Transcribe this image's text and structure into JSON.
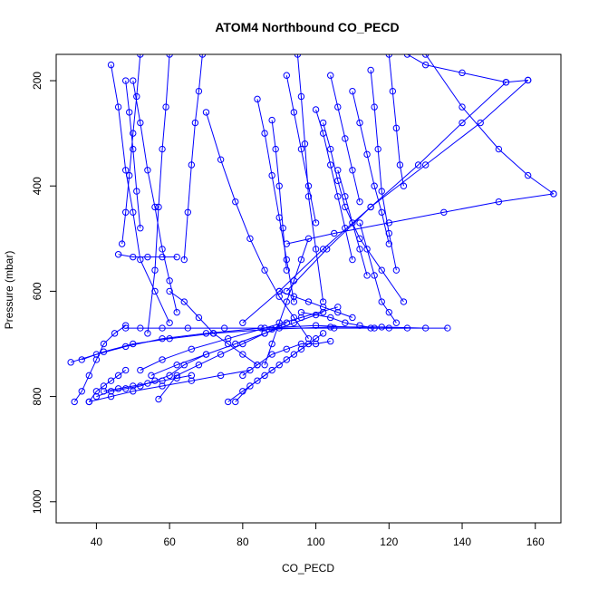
{
  "chart_data": {
    "type": "line",
    "title": "ATOM4 Northbound CO_PECD",
    "xlabel": "CO_PECD",
    "ylabel": "Pressure (mbar)",
    "xlim": [
      29,
      167
    ],
    "ylim": [
      1040,
      150
    ],
    "y_reversed": true,
    "x_ticks": [
      40,
      60,
      80,
      100,
      120,
      140,
      160
    ],
    "y_ticks": [
      200,
      400,
      600,
      800,
      1000
    ],
    "grid": false,
    "legend": "none",
    "marker": "open-circle",
    "color": "#0000ff",
    "series": [
      {
        "x": [
          34,
          36,
          38,
          40,
          42,
          45,
          48
        ],
        "y": [
          810,
          790,
          760,
          730,
          700,
          680,
          665
        ]
      },
      {
        "x": [
          48,
          52,
          58,
          65,
          75,
          90,
          105,
          120,
          136
        ],
        "y": [
          670,
          670,
          670,
          670,
          670,
          670,
          670,
          670,
          670
        ]
      },
      {
        "x": [
          44,
          46,
          48,
          50,
          52,
          56,
          60
        ],
        "y": [
          170,
          250,
          370,
          450,
          540,
          600,
          660
        ]
      },
      {
        "x": [
          50,
          52,
          54,
          56,
          58,
          60,
          62
        ],
        "y": [
          200,
          280,
          370,
          440,
          520,
          580,
          640
        ]
      },
      {
        "x": [
          38,
          40,
          42,
          44,
          46,
          48
        ],
        "y": [
          810,
          790,
          780,
          770,
          760,
          750
        ]
      },
      {
        "x": [
          40,
          44,
          48,
          52,
          56,
          60,
          64,
          70
        ],
        "y": [
          800,
          790,
          785,
          780,
          770,
          760,
          740,
          720
        ]
      },
      {
        "x": [
          33,
          40,
          48,
          58,
          70,
          85,
          100,
          115,
          125
        ],
        "y": [
          735,
          720,
          705,
          690,
          680,
          670,
          665,
          670,
          670
        ]
      },
      {
        "x": [
          36,
          42,
          50,
          60,
          72,
          88,
          104,
          118,
          130
        ],
        "y": [
          730,
          715,
          700,
          690,
          680,
          672,
          668,
          668,
          670
        ]
      },
      {
        "x": [
          60,
          64,
          68,
          72,
          76,
          80,
          84
        ],
        "y": [
          600,
          620,
          650,
          680,
          700,
          720,
          740
        ]
      },
      {
        "x": [
          70,
          74,
          78,
          82,
          86,
          90,
          94,
          98
        ],
        "y": [
          260,
          350,
          430,
          500,
          560,
          610,
          650,
          690
        ]
      },
      {
        "x": [
          84,
          86,
          88,
          90,
          92,
          94
        ],
        "y": [
          235,
          300,
          380,
          460,
          540,
          620
        ]
      },
      {
        "x": [
          95,
          96,
          97,
          98,
          100,
          102
        ],
        "y": [
          150,
          230,
          320,
          420,
          520,
          620
        ]
      },
      {
        "x": [
          100,
          102,
          104,
          106,
          108,
          110
        ],
        "y": [
          255,
          300,
          360,
          420,
          480,
          540
        ]
      },
      {
        "x": [
          102,
          104,
          106,
          108,
          112,
          118,
          124
        ],
        "y": [
          280,
          330,
          390,
          440,
          500,
          560,
          620
        ]
      },
      {
        "x": [
          110,
          112,
          114,
          116,
          118,
          120
        ],
        "y": [
          220,
          280,
          340,
          400,
          450,
          510
        ]
      },
      {
        "x": [
          115,
          116,
          117,
          118,
          120,
          122
        ],
        "y": [
          180,
          250,
          330,
          410,
          490,
          560
        ]
      },
      {
        "x": [
          120,
          121,
          122,
          123,
          124
        ],
        "y": [
          150,
          220,
          290,
          360,
          400
        ]
      },
      {
        "x": [
          125,
          130,
          140,
          152,
          158
        ],
        "y": [
          150,
          170,
          185,
          203,
          199
        ]
      },
      {
        "x": [
          130,
          140,
          150,
          158,
          165
        ],
        "y": [
          150,
          250,
          330,
          380,
          415
        ]
      },
      {
        "x": [
          165,
          150,
          135,
          120,
          105,
          92
        ],
        "y": [
          415,
          430,
          450,
          470,
          490,
          510
        ]
      },
      {
        "x": [
          158,
          145,
          130,
          115,
          102,
          90,
          80
        ],
        "y": [
          199,
          280,
          360,
          440,
          520,
          600,
          660
        ]
      },
      {
        "x": [
          152,
          140,
          128,
          115,
          103,
          92
        ],
        "y": [
          203,
          280,
          360,
          440,
          520,
          600
        ]
      },
      {
        "x": [
          76,
          80,
          84,
          88,
          92,
          96,
          100
        ],
        "y": [
          810,
          790,
          770,
          750,
          730,
          710,
          690
        ]
      },
      {
        "x": [
          78,
          82,
          86,
          90,
          94,
          98,
          102
        ],
        "y": [
          810,
          780,
          760,
          740,
          720,
          700,
          680
        ]
      },
      {
        "x": [
          86,
          88,
          90,
          92,
          94,
          96,
          98
        ],
        "y": [
          740,
          700,
          660,
          620,
          580,
          540,
          500
        ]
      },
      {
        "x": [
          57,
          62,
          68,
          74,
          80,
          86,
          92
        ],
        "y": [
          805,
          760,
          740,
          720,
          700,
          680,
          660
        ]
      },
      {
        "x": [
          55,
          62,
          70,
          78,
          86,
          94,
          102
        ],
        "y": [
          760,
          740,
          720,
          700,
          680,
          660,
          640
        ]
      },
      {
        "x": [
          52,
          58,
          66,
          76,
          86,
          96,
          106
        ],
        "y": [
          750,
          730,
          710,
          690,
          670,
          650,
          630
        ]
      },
      {
        "x": [
          46,
          50,
          54,
          58,
          62
        ],
        "y": [
          530,
          535,
          535,
          535,
          535
        ]
      },
      {
        "x": [
          54,
          56,
          57,
          58,
          59,
          60
        ],
        "y": [
          680,
          560,
          440,
          330,
          250,
          150
        ]
      },
      {
        "x": [
          64,
          65,
          66,
          67,
          68,
          69
        ],
        "y": [
          540,
          450,
          360,
          280,
          220,
          150
        ]
      },
      {
        "x": [
          48,
          49,
          50,
          51,
          52
        ],
        "y": [
          200,
          260,
          330,
          410,
          480
        ]
      },
      {
        "x": [
          47,
          48,
          49,
          50,
          51,
          52
        ],
        "y": [
          510,
          450,
          380,
          300,
          230,
          150
        ]
      },
      {
        "x": [
          88,
          89,
          90,
          91,
          92
        ],
        "y": [
          275,
          330,
          400,
          480,
          560
        ]
      },
      {
        "x": [
          92,
          94,
          96,
          98,
          100
        ],
        "y": [
          190,
          260,
          330,
          400,
          470
        ]
      },
      {
        "x": [
          104,
          106,
          108,
          110,
          112
        ],
        "y": [
          190,
          250,
          310,
          370,
          430
        ]
      },
      {
        "x": [
          106,
          108,
          110,
          112,
          114
        ],
        "y": [
          370,
          420,
          470,
          520,
          570
        ]
      },
      {
        "x": [
          112,
          114,
          116,
          118,
          120,
          122
        ],
        "y": [
          470,
          520,
          570,
          620,
          640,
          660
        ]
      },
      {
        "x": [
          96,
          100,
          104,
          108,
          112,
          116
        ],
        "y": [
          640,
          645,
          650,
          660,
          665,
          670
        ]
      },
      {
        "x": [
          90,
          94,
          98,
          102,
          106,
          110
        ],
        "y": [
          600,
          610,
          620,
          630,
          640,
          650
        ]
      },
      {
        "x": [
          80,
          84,
          88,
          92,
          96,
          100,
          104
        ],
        "y": [
          760,
          740,
          720,
          710,
          700,
          700,
          695
        ]
      },
      {
        "x": [
          42,
          46,
          50,
          54,
          58,
          62,
          66
        ],
        "y": [
          790,
          785,
          780,
          775,
          770,
          765,
          760
        ]
      },
      {
        "x": [
          38,
          44,
          50,
          58,
          66,
          74,
          82
        ],
        "y": [
          810,
          800,
          790,
          780,
          770,
          760,
          750
        ]
      }
    ]
  }
}
